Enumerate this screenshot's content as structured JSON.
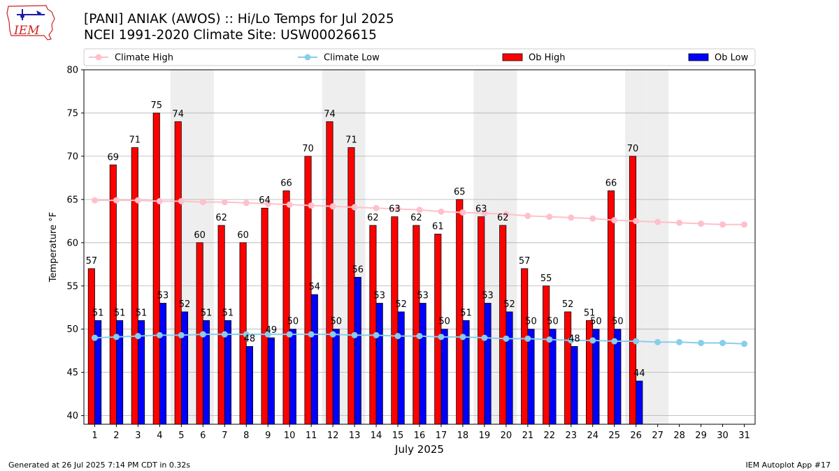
{
  "header": {
    "title_line1": "[PANI] ANIAK (AWOS) :: Hi/Lo Temps for Jul 2025",
    "title_line2": "NCEI 1991-2020 Climate Site: USW00026615"
  },
  "logo": {
    "text": "IEM",
    "icon": "iowa-state-outline-logo"
  },
  "footer": {
    "generated": "Generated at 26 Jul 2025 7:14 PM CDT in 0.32s",
    "app": "IEM Autoplot App #17"
  },
  "chart_data": {
    "type": "bar",
    "xlabel": "July 2025",
    "ylabel": "Temperature °F",
    "ylim": [
      39,
      80
    ],
    "yticks": [
      40,
      45,
      50,
      55,
      60,
      65,
      70,
      75,
      80
    ],
    "xlim": [
      0.5,
      31.5
    ],
    "days": [
      1,
      2,
      3,
      4,
      5,
      6,
      7,
      8,
      9,
      10,
      11,
      12,
      13,
      14,
      15,
      16,
      17,
      18,
      19,
      20,
      21,
      22,
      23,
      24,
      25,
      26,
      27,
      28,
      29,
      30,
      31
    ],
    "weekend_days": [
      5,
      6,
      12,
      13,
      19,
      20,
      26,
      27
    ],
    "grid": "horizontal",
    "legend_placement": "top",
    "series": [
      {
        "name": "Climate High",
        "kind": "line",
        "color": "#ffc0cb",
        "values": [
          64.9,
          64.9,
          64.9,
          64.8,
          64.8,
          64.7,
          64.7,
          64.6,
          64.5,
          64.4,
          64.3,
          64.2,
          64.1,
          64.0,
          63.9,
          63.8,
          63.6,
          63.5,
          63.4,
          63.3,
          63.1,
          63.0,
          62.9,
          62.8,
          62.6,
          62.5,
          62.4,
          62.3,
          62.2,
          62.1,
          62.1
        ]
      },
      {
        "name": "Climate Low",
        "kind": "line",
        "color": "#87ceeb",
        "values": [
          49.0,
          49.1,
          49.2,
          49.3,
          49.3,
          49.4,
          49.4,
          49.4,
          49.4,
          49.4,
          49.4,
          49.4,
          49.3,
          49.3,
          49.2,
          49.2,
          49.1,
          49.1,
          49.0,
          48.9,
          48.9,
          48.8,
          48.7,
          48.7,
          48.6,
          48.6,
          48.5,
          48.5,
          48.4,
          48.4,
          48.3
        ]
      },
      {
        "name": "Ob High",
        "kind": "bar",
        "color": "#ff0000",
        "values": [
          57,
          69,
          71,
          75,
          74,
          60,
          62,
          60,
          64,
          66,
          70,
          74,
          71,
          62,
          63,
          62,
          61,
          65,
          63,
          62,
          57,
          55,
          52,
          51,
          66,
          70
        ]
      },
      {
        "name": "Ob Low",
        "kind": "bar",
        "color": "#0000ff",
        "values": [
          51,
          51,
          51,
          53,
          52,
          51,
          51,
          48,
          49,
          50,
          54,
          50,
          56,
          53,
          52,
          53,
          50,
          51,
          53,
          52,
          50,
          50,
          48,
          50,
          50,
          44
        ]
      }
    ]
  }
}
